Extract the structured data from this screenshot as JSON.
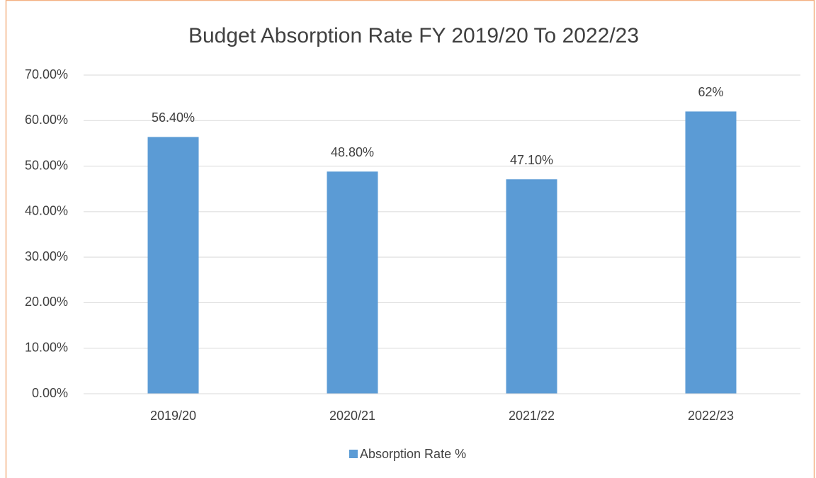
{
  "chart_data": {
    "type": "bar",
    "title": "Budget Absorption Rate FY 2019/20 To 2022/23",
    "categories": [
      "2019/20",
      "2020/21",
      "2021/22",
      "2022/23"
    ],
    "series": [
      {
        "name": "Absorption Rate %",
        "color": "#5b9bd5",
        "values": [
          56.4,
          48.8,
          47.1,
          62
        ],
        "value_labels": [
          "56.40%",
          "48.80%",
          "47.10%",
          "62%"
        ]
      }
    ],
    "ylim": [
      0,
      70
    ],
    "yticks": [
      {
        "value": 0,
        "label": "0.00%"
      },
      {
        "value": 10,
        "label": "10.00%"
      },
      {
        "value": 20,
        "label": "20.00%"
      },
      {
        "value": 30,
        "label": "30.00%"
      },
      {
        "value": 40,
        "label": "40.00%"
      },
      {
        "value": 50,
        "label": "50.00%"
      },
      {
        "value": 60,
        "label": "60.00%"
      },
      {
        "value": 70,
        "label": "70.00%"
      }
    ],
    "grid": true,
    "legend": "bottom"
  }
}
